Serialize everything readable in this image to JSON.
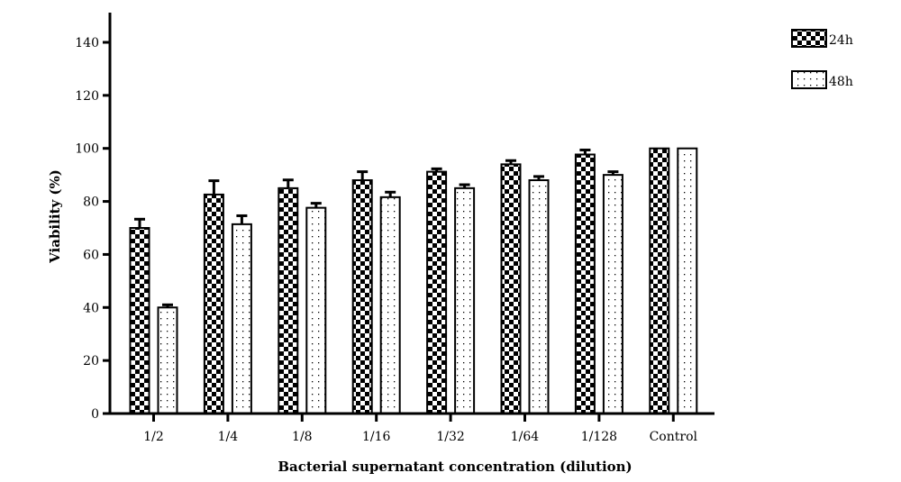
{
  "chart_data": {
    "type": "bar",
    "title": "",
    "xlabel": "Bacterial supernatant concentration (dilution)",
    "ylabel": "Viability (%)",
    "ylim": [
      0,
      140
    ],
    "yticks": [
      0,
      20,
      40,
      60,
      80,
      100,
      120,
      140
    ],
    "categories": [
      "1/2",
      "1/4",
      "1/8",
      "1/16",
      "1/32",
      "1/64",
      "1/128",
      "Control"
    ],
    "series": [
      {
        "name": "24h",
        "pattern": "checkerboard",
        "values": [
          70,
          82.6,
          85,
          88,
          91.2,
          94,
          97.7,
          100
        ],
        "error": [
          3.3,
          5.2,
          3.1,
          3.2,
          1.1,
          1.4,
          1.7,
          0
        ]
      },
      {
        "name": "48h",
        "pattern": "dotted",
        "values": [
          40,
          71.4,
          77.6,
          81.6,
          85,
          88,
          90,
          100
        ],
        "error": [
          1,
          3.2,
          1.7,
          1.9,
          1.3,
          1.4,
          1.2,
          0
        ]
      }
    ],
    "legend_position": "top-right",
    "grid": false
  }
}
